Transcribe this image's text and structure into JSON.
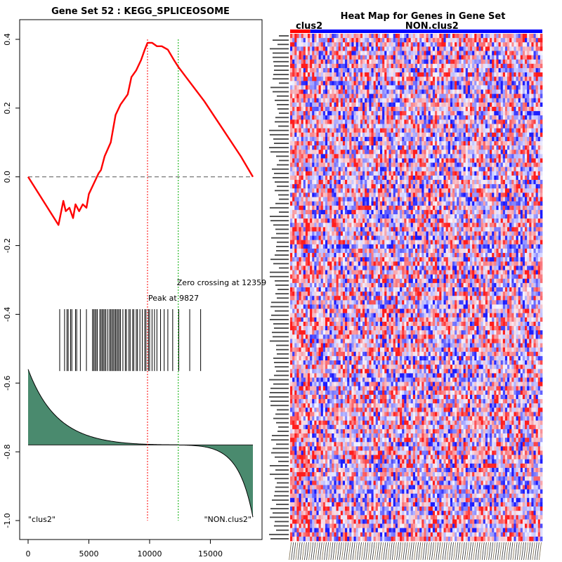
{
  "chart_data": [
    {
      "type": "line",
      "title": "Gene Set  52 : KEGG_SPLICEOSOME",
      "xlim": [
        0,
        18500
      ],
      "ylim": [
        -1.0,
        0.4
      ],
      "x_ticks": [
        0,
        5000,
        10000,
        15000
      ],
      "y_ticks": [
        0.4,
        0.2,
        0.0,
        -0.2,
        -0.4,
        -0.6,
        -0.8,
        -1.0
      ],
      "x_tick_labels": [
        "0",
        "5000",
        "10000",
        "15000"
      ],
      "y_tick_labels": [
        "0.4",
        "0.2",
        "0.0",
        "-0.2",
        "-0.4",
        "-0.6",
        "-0.8",
        "-1.0"
      ],
      "series": [
        {
          "color": "#ff0000",
          "x": [
            0,
            2500,
            2900,
            3100,
            3400,
            3700,
            3900,
            4200,
            4500,
            4800,
            5000,
            5400,
            5800,
            6000,
            6300,
            6800,
            7200,
            7600,
            8200,
            8500,
            8900,
            9300,
            9600,
            9827,
            10200,
            10600,
            11000,
            11500,
            12000,
            12359,
            13000,
            14500,
            16000,
            17500,
            18500
          ],
          "y": [
            0.0,
            -0.14,
            -0.07,
            -0.1,
            -0.09,
            -0.12,
            -0.08,
            -0.1,
            -0.08,
            -0.09,
            -0.05,
            -0.02,
            0.01,
            0.02,
            0.06,
            0.1,
            0.18,
            0.21,
            0.24,
            0.29,
            0.31,
            0.34,
            0.37,
            0.39,
            0.39,
            0.38,
            0.38,
            0.37,
            0.34,
            0.32,
            0.29,
            0.22,
            0.14,
            0.06,
            0.0
          ]
        }
      ],
      "hline": 0.0,
      "peak": {
        "x": 9827,
        "label": "Peak at 9827",
        "color": "#ff0000"
      },
      "zero_crossing": {
        "x": 12359,
        "label": "Zero crossing at 12359",
        "color": "#00aa00"
      },
      "hits": [
        2600,
        3000,
        3200,
        3300,
        3500,
        3600,
        3900,
        4000,
        4300,
        4800,
        5300,
        5400,
        5500,
        5600,
        5700,
        5900,
        6000,
        6100,
        6200,
        6300,
        6400,
        6550,
        6700,
        6800,
        6900,
        7000,
        7100,
        7200,
        7300,
        7400,
        7500,
        7600,
        7800,
        8000,
        8100,
        8300,
        8400,
        8600,
        8700,
        8900,
        9000,
        9200,
        9400,
        9600,
        9700,
        9900,
        10000,
        10200,
        10400,
        10600,
        10900,
        11200,
        11500,
        11900,
        12400,
        13300,
        14200
      ],
      "ranked_metric": {
        "color": "#4a8a6e",
        "baseline": -0.78,
        "max": -0.56,
        "min": -0.99
      },
      "corner_labels": {
        "left": "\"clus2\"",
        "right": "\"NON.clus2\""
      }
    },
    {
      "type": "heatmap",
      "title": "Heat Map for Genes in Gene Set",
      "groups": [
        {
          "label": "clus2",
          "color": "#ff0000",
          "fraction": 0.08
        },
        {
          "label": "NON.clus2",
          "color": "#0000ff",
          "fraction": 0.92
        }
      ],
      "color_low": "#1d1dff",
      "color_mid": "#f4f4ff",
      "color_high": "#ff1d1d",
      "n_rows": 118,
      "n_cols": 115
    }
  ]
}
